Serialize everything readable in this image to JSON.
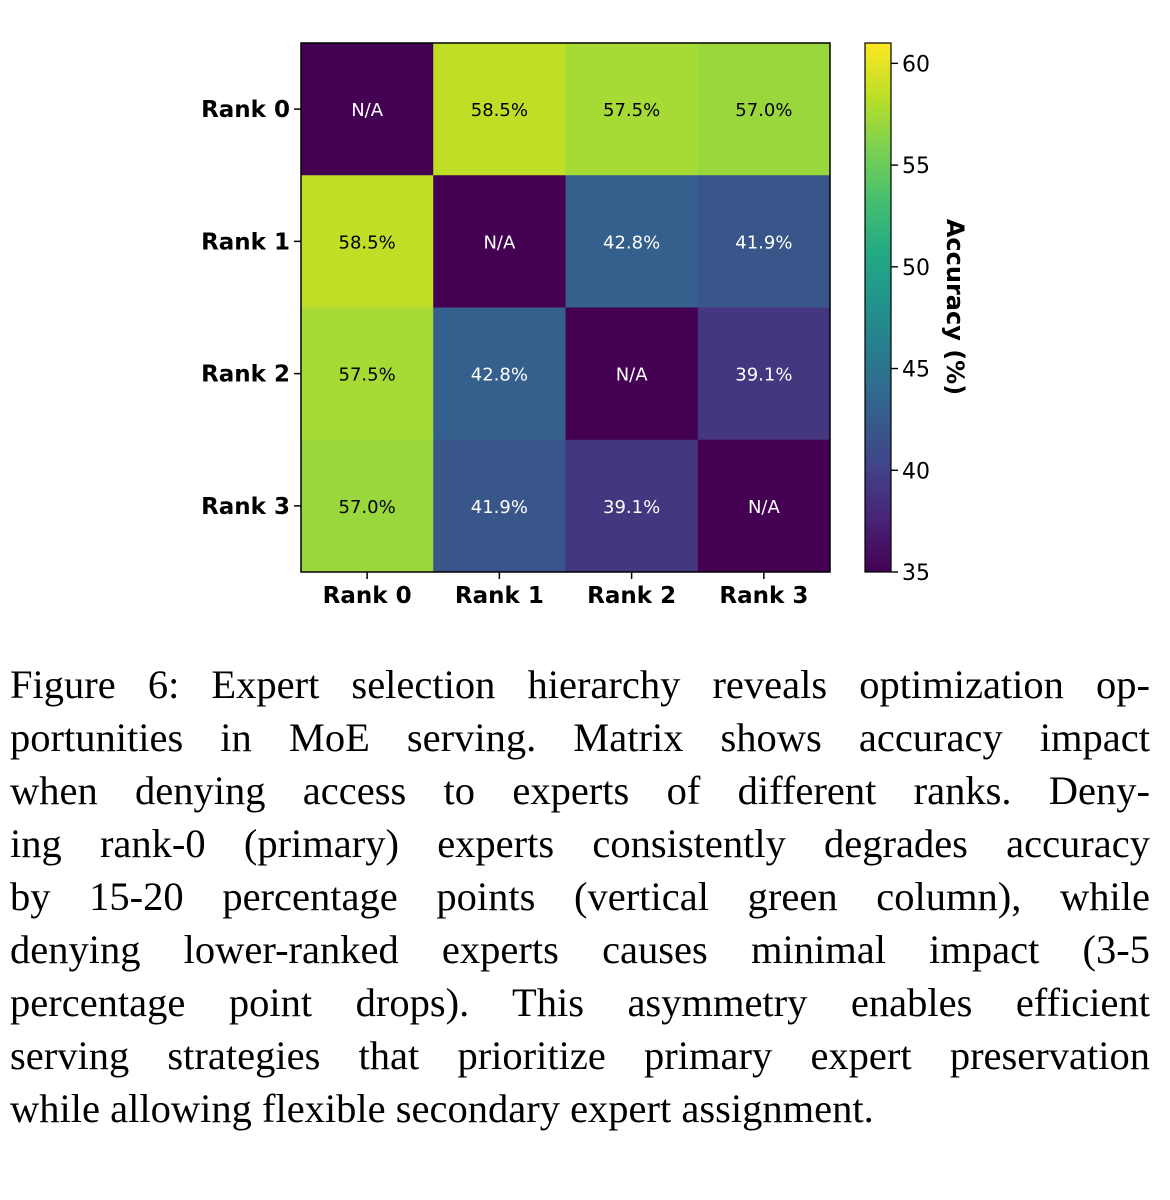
{
  "chart_data": {
    "type": "heatmap",
    "row_labels": [
      "Rank 0",
      "Rank 1",
      "Rank 2",
      "Rank 3"
    ],
    "col_labels": [
      "Rank 0",
      "Rank 1",
      "Rank 2",
      "Rank 3"
    ],
    "values": [
      [
        null,
        58.5,
        57.5,
        57.0
      ],
      [
        58.5,
        null,
        42.8,
        41.9
      ],
      [
        57.5,
        42.8,
        null,
        39.1
      ],
      [
        57.0,
        41.9,
        39.1,
        null
      ]
    ],
    "cell_text": [
      [
        "N/A",
        "58.5%",
        "57.5%",
        "57.0%"
      ],
      [
        "58.5%",
        "N/A",
        "42.8%",
        "41.9%"
      ],
      [
        "57.5%",
        "42.8%",
        "N/A",
        "39.1%"
      ],
      [
        "57.0%",
        "41.9%",
        "39.1%",
        "N/A"
      ]
    ],
    "na_fill_value": 35,
    "colormap": "viridis",
    "colorbar": {
      "label": "Accuracy (%)",
      "range": [
        35,
        61
      ],
      "ticks": [
        35,
        40,
        45,
        50,
        55,
        60
      ]
    }
  },
  "caption": {
    "lines": [
      "Figure 6: Expert selection hierarchy reveals optimization op-",
      "portunities in MoE serving. Matrix shows accuracy impact",
      "when denying access to experts of different ranks. Deny-",
      "ing rank-0 (primary) experts consistently degrades accuracy",
      "by  15-20 percentage points (vertical green column), while",
      "denying lower-ranked experts causes minimal impact (3-5",
      "percentage point drops). This asymmetry enables efficient",
      "serving strategies that prioritize primary expert preservation",
      "while allowing flexible secondary expert assignment."
    ]
  }
}
